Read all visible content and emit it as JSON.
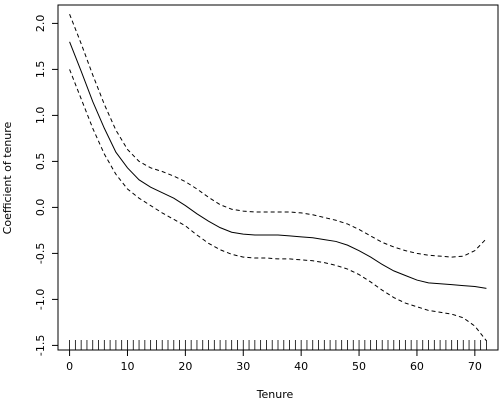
{
  "chart_data": {
    "type": "line",
    "title": "",
    "xlabel": "Tenure",
    "ylabel": "Coefficient of tenure",
    "xlim": [
      -2,
      74
    ],
    "ylim": [
      -1.55,
      2.2
    ],
    "x_ticks": [
      0,
      10,
      20,
      30,
      40,
      50,
      60,
      70
    ],
    "y_ticks": [
      -1.5,
      -1.0,
      -0.5,
      0.0,
      0.5,
      1.0,
      1.5,
      2.0
    ],
    "x_tick_labels": [
      "0",
      "10",
      "20",
      "30",
      "40",
      "50",
      "60",
      "70"
    ],
    "y_tick_labels": [
      "-1.5",
      "-1.0",
      "-0.5",
      "0.0",
      "0.5",
      "1.0",
      "1.5",
      "2.0"
    ],
    "grid": false,
    "rug": [
      0,
      1,
      2,
      3,
      4,
      5,
      6,
      7,
      8,
      9,
      10,
      11,
      12,
      13,
      14,
      15,
      16,
      17,
      18,
      19,
      20,
      21,
      22,
      23,
      24,
      25,
      26,
      27,
      28,
      29,
      30,
      31,
      32,
      33,
      34,
      35,
      36,
      37,
      38,
      39,
      40,
      41,
      42,
      43,
      44,
      45,
      46,
      47,
      48,
      49,
      50,
      51,
      52,
      53,
      54,
      55,
      56,
      57,
      58,
      59,
      60,
      61,
      62,
      63,
      64,
      65,
      66,
      67,
      68,
      69,
      70,
      71,
      72
    ],
    "series": [
      {
        "line_style": "solid",
        "x": [
          0,
          2,
          4,
          6,
          8,
          10,
          12,
          14,
          16,
          18,
          20,
          22,
          24,
          26,
          28,
          30,
          32,
          34,
          36,
          38,
          40,
          42,
          44,
          46,
          48,
          50,
          52,
          54,
          56,
          58,
          60,
          62,
          64,
          66,
          68,
          70,
          72
        ],
        "y": [
          1.8,
          1.48,
          1.15,
          0.86,
          0.6,
          0.43,
          0.3,
          0.22,
          0.16,
          0.1,
          0.02,
          -0.07,
          -0.15,
          -0.22,
          -0.27,
          -0.29,
          -0.3,
          -0.3,
          -0.3,
          -0.31,
          -0.32,
          -0.33,
          -0.35,
          -0.37,
          -0.41,
          -0.47,
          -0.54,
          -0.62,
          -0.69,
          -0.74,
          -0.79,
          -0.82,
          -0.83,
          -0.84,
          -0.85,
          -0.86,
          -0.88
        ]
      },
      {
        "line_style": "dashed",
        "x": [
          0,
          2,
          4,
          6,
          8,
          10,
          12,
          14,
          16,
          18,
          20,
          22,
          24,
          26,
          28,
          30,
          32,
          34,
          36,
          38,
          40,
          42,
          44,
          46,
          48,
          50,
          52,
          54,
          56,
          58,
          60,
          62,
          64,
          66,
          68,
          70,
          72
        ],
        "y": [
          2.1,
          1.78,
          1.44,
          1.12,
          0.84,
          0.63,
          0.5,
          0.43,
          0.39,
          0.34,
          0.28,
          0.2,
          0.11,
          0.03,
          -0.02,
          -0.04,
          -0.05,
          -0.05,
          -0.05,
          -0.05,
          -0.06,
          -0.08,
          -0.11,
          -0.14,
          -0.18,
          -0.24,
          -0.31,
          -0.38,
          -0.43,
          -0.47,
          -0.5,
          -0.52,
          -0.53,
          -0.54,
          -0.53,
          -0.47,
          -0.34
        ]
      },
      {
        "line_style": "dashed",
        "x": [
          0,
          2,
          4,
          6,
          8,
          10,
          12,
          14,
          16,
          18,
          20,
          22,
          24,
          26,
          28,
          30,
          32,
          34,
          36,
          38,
          40,
          42,
          44,
          46,
          48,
          50,
          52,
          54,
          56,
          58,
          60,
          62,
          64,
          66,
          68,
          70,
          72
        ],
        "y": [
          1.5,
          1.18,
          0.86,
          0.58,
          0.36,
          0.2,
          0.1,
          0.02,
          -0.06,
          -0.13,
          -0.2,
          -0.3,
          -0.39,
          -0.46,
          -0.51,
          -0.54,
          -0.55,
          -0.55,
          -0.56,
          -0.56,
          -0.57,
          -0.58,
          -0.6,
          -0.63,
          -0.67,
          -0.73,
          -0.81,
          -0.9,
          -0.98,
          -1.04,
          -1.08,
          -1.12,
          -1.14,
          -1.16,
          -1.2,
          -1.29,
          -1.45
        ]
      }
    ]
  }
}
